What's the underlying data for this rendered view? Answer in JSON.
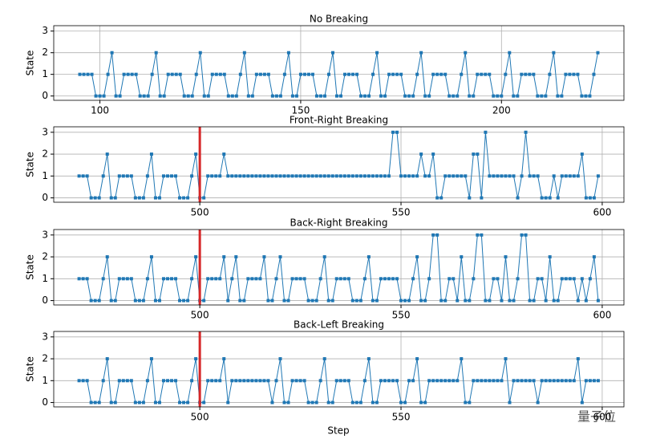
{
  "chart_data": [
    {
      "type": "line",
      "title": "No Breaking",
      "y_label": "State",
      "color": "#1f77b4",
      "grid": true,
      "xlim": [
        88.5,
        230.5
      ],
      "xticks": [
        100,
        150,
        200
      ],
      "ylim": [
        -0.2,
        3.25
      ],
      "yticks": [
        0,
        1,
        2,
        3
      ],
      "x": [
        95,
        96,
        97,
        98,
        99,
        100,
        101,
        102,
        103,
        104,
        105,
        106,
        107,
        108,
        109,
        110,
        111,
        112,
        113,
        114,
        115,
        116,
        117,
        118,
        119,
        120,
        121,
        122,
        123,
        124,
        125,
        126,
        127,
        128,
        129,
        130,
        131,
        132,
        133,
        134,
        135,
        136,
        137,
        138,
        139,
        140,
        141,
        142,
        143,
        144,
        145,
        146,
        147,
        148,
        149,
        150,
        151,
        152,
        153,
        154,
        155,
        156,
        157,
        158,
        159,
        160,
        161,
        162,
        163,
        164,
        165,
        166,
        167,
        168,
        169,
        170,
        171,
        172,
        173,
        174,
        175,
        176,
        177,
        178,
        179,
        180,
        181,
        182,
        183,
        184,
        185,
        186,
        187,
        188,
        189,
        190,
        191,
        192,
        193,
        194,
        195,
        196,
        197,
        198,
        199,
        200,
        201,
        202,
        203,
        204,
        205,
        206,
        207,
        208,
        209,
        210,
        211,
        212,
        213,
        214,
        215,
        216,
        217,
        218,
        219,
        220,
        221,
        222,
        223,
        224
      ],
      "values": [
        1,
        1,
        1,
        1,
        0,
        0,
        0,
        1,
        2,
        0,
        0,
        1,
        1,
        1,
        1,
        0,
        0,
        0,
        1,
        2,
        0,
        0,
        1,
        1,
        1,
        1,
        0,
        0,
        0,
        1,
        2,
        0,
        0,
        1,
        1,
        1,
        1,
        0,
        0,
        0,
        1,
        2,
        0,
        0,
        1,
        1,
        1,
        1,
        0,
        0,
        0,
        1,
        2,
        0,
        0,
        1,
        1,
        1,
        1,
        0,
        0,
        0,
        1,
        2,
        0,
        0,
        1,
        1,
        1,
        1,
        0,
        0,
        0,
        1,
        2,
        0,
        0,
        1,
        1,
        1,
        1,
        0,
        0,
        0,
        1,
        2,
        0,
        0,
        1,
        1,
        1,
        1,
        0,
        0,
        0,
        1,
        2,
        0,
        0,
        1,
        1,
        1,
        1,
        0,
        0,
        0,
        1,
        2,
        0,
        0,
        1,
        1,
        1,
        1,
        0,
        0,
        0,
        1,
        2,
        0,
        0,
        1,
        1,
        1,
        1,
        0,
        0,
        0,
        1,
        2
      ]
    },
    {
      "type": "line",
      "title": "Front-Right Breaking",
      "y_label": "State",
      "color": "#1f77b4",
      "grid": true,
      "xlim": [
        463.7,
        605.4
      ],
      "xticks": [
        500,
        550,
        600
      ],
      "ylim": [
        -0.2,
        3.25
      ],
      "yticks": [
        0,
        1,
        2,
        3
      ],
      "vlines": [
        500
      ],
      "vline_color": "#d62728",
      "x": [
        470,
        471,
        472,
        473,
        474,
        475,
        476,
        477,
        478,
        479,
        480,
        481,
        482,
        483,
        484,
        485,
        486,
        487,
        488,
        489,
        490,
        491,
        492,
        493,
        494,
        495,
        496,
        497,
        498,
        499,
        500,
        501,
        502,
        503,
        504,
        505,
        506,
        507,
        508,
        509,
        510,
        511,
        512,
        513,
        514,
        515,
        516,
        517,
        518,
        519,
        520,
        521,
        522,
        523,
        524,
        525,
        526,
        527,
        528,
        529,
        530,
        531,
        532,
        533,
        534,
        535,
        536,
        537,
        538,
        539,
        540,
        541,
        542,
        543,
        544,
        545,
        546,
        547,
        548,
        549,
        550,
        551,
        552,
        553,
        554,
        555,
        556,
        557,
        558,
        559,
        560,
        561,
        562,
        563,
        564,
        565,
        566,
        567,
        568,
        569,
        570,
        571,
        572,
        573,
        574,
        575,
        576,
        577,
        578,
        579,
        580,
        581,
        582,
        583,
        584,
        585,
        586,
        587,
        588,
        589,
        590,
        591,
        592,
        593,
        594,
        595,
        596,
        597,
        598,
        599
      ],
      "values": [
        1,
        1,
        1,
        0,
        0,
        0,
        1,
        2,
        0,
        0,
        1,
        1,
        1,
        1,
        0,
        0,
        0,
        1,
        2,
        0,
        0,
        1,
        1,
        1,
        1,
        0,
        0,
        0,
        1,
        2,
        0,
        0,
        1,
        1,
        1,
        1,
        2,
        1,
        1,
        1,
        1,
        1,
        1,
        1,
        1,
        1,
        1,
        1,
        1,
        1,
        1,
        1,
        1,
        1,
        1,
        1,
        1,
        1,
        1,
        1,
        1,
        1,
        1,
        1,
        1,
        1,
        1,
        1,
        1,
        1,
        1,
        1,
        1,
        1,
        1,
        1,
        1,
        1,
        3,
        3,
        1,
        1,
        1,
        1,
        1,
        2,
        1,
        1,
        2,
        0,
        0,
        1,
        1,
        1,
        1,
        1,
        1,
        0,
        2,
        2,
        0,
        3,
        1,
        1,
        1,
        1,
        1,
        1,
        1,
        0,
        1,
        3,
        1,
        1,
        1,
        0,
        0,
        0,
        1,
        0,
        1,
        1,
        1,
        1,
        1,
        2,
        0,
        0,
        0,
        1
      ]
    },
    {
      "type": "line",
      "title": "Back-Right Breaking",
      "y_label": "State",
      "color": "#1f77b4",
      "grid": true,
      "xlim": [
        463.7,
        605.4
      ],
      "xticks": [
        500,
        550,
        600
      ],
      "ylim": [
        -0.2,
        3.25
      ],
      "yticks": [
        0,
        1,
        2,
        3
      ],
      "vlines": [
        500
      ],
      "vline_color": "#d62728",
      "x": [
        470,
        471,
        472,
        473,
        474,
        475,
        476,
        477,
        478,
        479,
        480,
        481,
        482,
        483,
        484,
        485,
        486,
        487,
        488,
        489,
        490,
        491,
        492,
        493,
        494,
        495,
        496,
        497,
        498,
        499,
        500,
        501,
        502,
        503,
        504,
        505,
        506,
        507,
        508,
        509,
        510,
        511,
        512,
        513,
        514,
        515,
        516,
        517,
        518,
        519,
        520,
        521,
        522,
        523,
        524,
        525,
        526,
        527,
        528,
        529,
        530,
        531,
        532,
        533,
        534,
        535,
        536,
        537,
        538,
        539,
        540,
        541,
        542,
        543,
        544,
        545,
        546,
        547,
        548,
        549,
        550,
        551,
        552,
        553,
        554,
        555,
        556,
        557,
        558,
        559,
        560,
        561,
        562,
        563,
        564,
        565,
        566,
        567,
        568,
        569,
        570,
        571,
        572,
        573,
        574,
        575,
        576,
        577,
        578,
        579,
        580,
        581,
        582,
        583,
        584,
        585,
        586,
        587,
        588,
        589,
        590,
        591,
        592,
        593,
        594,
        595,
        596,
        597,
        598,
        599
      ],
      "values": [
        1,
        1,
        1,
        0,
        0,
        0,
        1,
        2,
        0,
        0,
        1,
        1,
        1,
        1,
        0,
        0,
        0,
        1,
        2,
        0,
        0,
        1,
        1,
        1,
        1,
        0,
        0,
        0,
        1,
        2,
        0,
        0,
        1,
        1,
        1,
        1,
        2,
        0,
        1,
        2,
        0,
        0,
        1,
        1,
        1,
        1,
        2,
        0,
        0,
        1,
        2,
        0,
        0,
        1,
        1,
        1,
        1,
        0,
        0,
        0,
        1,
        2,
        0,
        0,
        1,
        1,
        1,
        1,
        0,
        0,
        0,
        1,
        2,
        0,
        0,
        1,
        1,
        1,
        1,
        1,
        0,
        0,
        0,
        1,
        2,
        0,
        0,
        1,
        3,
        3,
        0,
        0,
        1,
        1,
        0,
        2,
        0,
        0,
        1,
        3,
        3,
        0,
        0,
        1,
        1,
        0,
        2,
        0,
        0,
        1,
        3,
        3,
        0,
        0,
        1,
        1,
        0,
        2,
        0,
        0,
        1,
        1,
        1,
        1,
        0,
        1,
        0,
        1,
        2,
        0
      ]
    },
    {
      "type": "line",
      "title": "Back-Left Breaking",
      "y_label": "State",
      "color": "#1f77b4",
      "grid": true,
      "xlim": [
        463.7,
        605.4
      ],
      "xticks": [
        500,
        550,
        600
      ],
      "ylim": [
        -0.2,
        3.25
      ],
      "yticks": [
        0,
        1,
        2,
        3
      ],
      "vlines": [
        500
      ],
      "vline_color": "#d62728",
      "x": [
        470,
        471,
        472,
        473,
        474,
        475,
        476,
        477,
        478,
        479,
        480,
        481,
        482,
        483,
        484,
        485,
        486,
        487,
        488,
        489,
        490,
        491,
        492,
        493,
        494,
        495,
        496,
        497,
        498,
        499,
        500,
        501,
        502,
        503,
        504,
        505,
        506,
        507,
        508,
        509,
        510,
        511,
        512,
        513,
        514,
        515,
        516,
        517,
        518,
        519,
        520,
        521,
        522,
        523,
        524,
        525,
        526,
        527,
        528,
        529,
        530,
        531,
        532,
        533,
        534,
        535,
        536,
        537,
        538,
        539,
        540,
        541,
        542,
        543,
        544,
        545,
        546,
        547,
        548,
        549,
        550,
        551,
        552,
        553,
        554,
        555,
        556,
        557,
        558,
        559,
        560,
        561,
        562,
        563,
        564,
        565,
        566,
        567,
        568,
        569,
        570,
        571,
        572,
        573,
        574,
        575,
        576,
        577,
        578,
        579,
        580,
        581,
        582,
        583,
        584,
        585,
        586,
        587,
        588,
        589,
        590,
        591,
        592,
        593,
        594,
        595,
        596,
        597,
        598,
        599
      ],
      "values": [
        1,
        1,
        1,
        0,
        0,
        0,
        1,
        2,
        0,
        0,
        1,
        1,
        1,
        1,
        0,
        0,
        0,
        1,
        2,
        0,
        0,
        1,
        1,
        1,
        1,
        0,
        0,
        0,
        1,
        2,
        0,
        0,
        1,
        1,
        1,
        1,
        2,
        0,
        1,
        1,
        1,
        1,
        1,
        1,
        1,
        1,
        1,
        1,
        0,
        1,
        2,
        0,
        0,
        1,
        1,
        1,
        1,
        0,
        0,
        0,
        1,
        2,
        0,
        0,
        1,
        1,
        1,
        1,
        0,
        0,
        0,
        1,
        2,
        0,
        0,
        1,
        1,
        1,
        1,
        1,
        0,
        0,
        1,
        1,
        2,
        0,
        0,
        1,
        1,
        1,
        1,
        1,
        1,
        1,
        1,
        2,
        0,
        0,
        1,
        1,
        1,
        1,
        1,
        1,
        1,
        1,
        2,
        0,
        1,
        1,
        1,
        1,
        1,
        1,
        0,
        1,
        1,
        1,
        1,
        1,
        1,
        1,
        1,
        1,
        2,
        0,
        1,
        1,
        1,
        1
      ]
    }
  ],
  "x_label": "Step",
  "watermark": "量子位"
}
